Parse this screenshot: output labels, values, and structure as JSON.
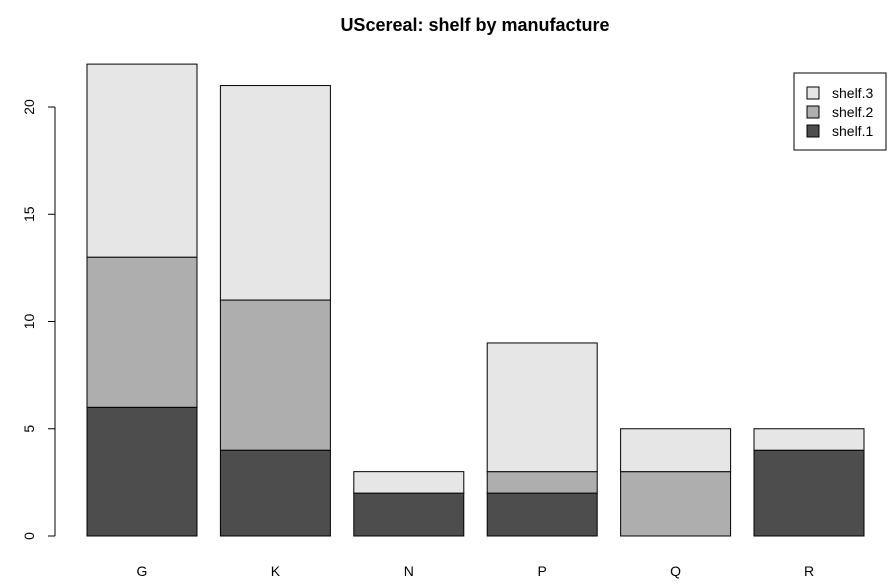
{
  "chart_data": {
    "type": "bar",
    "stacked": true,
    "title": "UScereal: shelf by manufacture",
    "xlabel": "",
    "ylabel": "",
    "categories": [
      "G",
      "K",
      "N",
      "P",
      "Q",
      "R"
    ],
    "series": [
      {
        "name": "shelf.1",
        "values": [
          6,
          4,
          2,
          2,
          0,
          4
        ],
        "color": "#4d4d4d"
      },
      {
        "name": "shelf.2",
        "values": [
          7,
          7,
          0,
          1,
          3,
          0
        ],
        "color": "#aeaeae"
      },
      {
        "name": "shelf.3",
        "values": [
          9,
          10,
          1,
          6,
          2,
          1
        ],
        "color": "#e6e6e6"
      }
    ],
    "ylim": [
      0,
      22
    ],
    "yticks": [
      0,
      5,
      10,
      15,
      20
    ],
    "grid": false,
    "legend": {
      "position": "top-right",
      "order": [
        "shelf.3",
        "shelf.2",
        "shelf.1"
      ]
    }
  }
}
